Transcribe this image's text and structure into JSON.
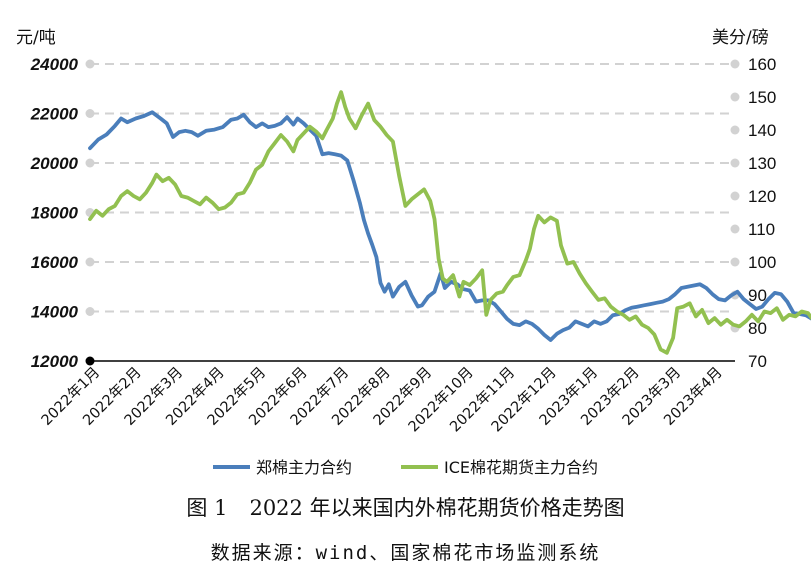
{
  "chart_data": {
    "type": "line",
    "y_left_label": "元/吨",
    "y_right_label": "美分/磅",
    "y_left_ticks": [
      "24000",
      "22000",
      "20000",
      "18000",
      "16000",
      "14000",
      "12000"
    ],
    "y_right_ticks": [
      "160",
      "150",
      "140",
      "130",
      "120",
      "110",
      "100",
      "90",
      "80",
      "70"
    ],
    "y_left_range": [
      12000,
      24000
    ],
    "y_right_range": [
      70,
      160
    ],
    "x_ticks": [
      "2022年1月",
      "2022年2月",
      "2022年3月",
      "2022年4月",
      "2022年5月",
      "2022年6月",
      "2022年7月",
      "2022年8月",
      "2022年9月",
      "2022年10月",
      "2022年11月",
      "2022年12月",
      "2023年1月",
      "2023年2月",
      "2023年3月",
      "2023年4月"
    ],
    "grid": "horizontal dashed",
    "legend_position": "bottom",
    "series": [
      {
        "name": "郑棉主力合约",
        "axis": "left",
        "color": "#4a7ebb",
        "points": [
          [
            0.0,
            20600
          ],
          [
            0.2,
            20950
          ],
          [
            0.4,
            21150
          ],
          [
            0.6,
            21500
          ],
          [
            0.75,
            21800
          ],
          [
            0.9,
            21650
          ],
          [
            1.1,
            21800
          ],
          [
            1.3,
            21900
          ],
          [
            1.5,
            22050
          ],
          [
            1.7,
            21800
          ],
          [
            1.85,
            21600
          ],
          [
            2.0,
            21050
          ],
          [
            2.15,
            21250
          ],
          [
            2.3,
            21300
          ],
          [
            2.45,
            21250
          ],
          [
            2.6,
            21100
          ],
          [
            2.8,
            21300
          ],
          [
            3.0,
            21350
          ],
          [
            3.2,
            21450
          ],
          [
            3.4,
            21750
          ],
          [
            3.55,
            21800
          ],
          [
            3.7,
            21950
          ],
          [
            3.85,
            21650
          ],
          [
            4.0,
            21450
          ],
          [
            4.15,
            21600
          ],
          [
            4.3,
            21450
          ],
          [
            4.45,
            21500
          ],
          [
            4.6,
            21600
          ],
          [
            4.75,
            21850
          ],
          [
            4.9,
            21550
          ],
          [
            5.0,
            21800
          ],
          [
            5.15,
            21600
          ],
          [
            5.3,
            21350
          ],
          [
            5.45,
            21100
          ],
          [
            5.6,
            20350
          ],
          [
            5.75,
            20400
          ],
          [
            5.9,
            20350
          ],
          [
            6.05,
            20300
          ],
          [
            6.2,
            20100
          ],
          [
            6.35,
            19300
          ],
          [
            6.5,
            18400
          ],
          [
            6.6,
            17700
          ],
          [
            6.7,
            17150
          ],
          [
            6.8,
            16700
          ],
          [
            6.9,
            16200
          ],
          [
            7.0,
            15150
          ],
          [
            7.1,
            14800
          ],
          [
            7.2,
            15100
          ],
          [
            7.3,
            14600
          ],
          [
            7.45,
            15000
          ],
          [
            7.6,
            15200
          ],
          [
            7.75,
            14650
          ],
          [
            7.9,
            14200
          ],
          [
            8.0,
            14250
          ],
          [
            8.15,
            14600
          ],
          [
            8.3,
            14800
          ],
          [
            8.45,
            15550
          ],
          [
            8.55,
            14950
          ],
          [
            8.7,
            15200
          ],
          [
            8.85,
            15100
          ],
          [
            9.0,
            14900
          ],
          [
            9.15,
            14850
          ],
          [
            9.3,
            14400
          ],
          [
            9.45,
            14450
          ],
          [
            9.6,
            14450
          ],
          [
            9.75,
            14300
          ],
          [
            9.9,
            14000
          ],
          [
            10.05,
            13700
          ],
          [
            10.2,
            13500
          ],
          [
            10.35,
            13450
          ],
          [
            10.5,
            13600
          ],
          [
            10.65,
            13500
          ],
          [
            10.8,
            13300
          ],
          [
            10.95,
            13050
          ],
          [
            11.1,
            12850
          ],
          [
            11.25,
            13100
          ],
          [
            11.4,
            13250
          ],
          [
            11.55,
            13350
          ],
          [
            11.7,
            13600
          ],
          [
            11.85,
            13500
          ],
          [
            12.0,
            13400
          ],
          [
            12.15,
            13600
          ],
          [
            12.3,
            13500
          ],
          [
            12.45,
            13600
          ],
          [
            12.6,
            13850
          ],
          [
            12.75,
            13900
          ],
          [
            12.9,
            14050
          ],
          [
            13.05,
            14150
          ],
          [
            13.2,
            14200
          ],
          [
            13.35,
            14250
          ],
          [
            13.5,
            14300
          ],
          [
            13.65,
            14350
          ],
          [
            13.8,
            14400
          ],
          [
            13.95,
            14500
          ],
          [
            14.1,
            14700
          ],
          [
            14.25,
            14950
          ],
          [
            14.4,
            15000
          ],
          [
            14.55,
            15050
          ],
          [
            14.7,
            15100
          ],
          [
            14.85,
            14950
          ],
          [
            15.0,
            14700
          ],
          [
            15.15,
            14500
          ],
          [
            15.3,
            14450
          ],
          [
            15.45,
            14650
          ],
          [
            15.6,
            14800
          ],
          [
            15.75,
            14500
          ],
          [
            15.9,
            14300
          ],
          [
            16.05,
            14100
          ],
          [
            16.2,
            14200
          ],
          [
            16.35,
            14500
          ],
          [
            16.5,
            14750
          ],
          [
            16.65,
            14700
          ],
          [
            16.8,
            14400
          ],
          [
            16.95,
            13950
          ],
          [
            17.1,
            13900
          ],
          [
            17.25,
            13850
          ],
          [
            17.4,
            13700
          ],
          [
            17.55,
            13600
          ],
          [
            17.7,
            14400
          ],
          [
            17.85,
            14450
          ],
          [
            18.0,
            14600
          ],
          [
            18.1,
            14800
          ],
          [
            18.25,
            14750
          ]
        ]
      },
      {
        "name": "ICE棉花期货主力合约",
        "axis": "right",
        "color": "#92c050",
        "points": [
          [
            0.0,
            113.0
          ],
          [
            0.15,
            115.5
          ],
          [
            0.3,
            114.0
          ],
          [
            0.45,
            116.0
          ],
          [
            0.6,
            117.0
          ],
          [
            0.75,
            120.0
          ],
          [
            0.9,
            121.5
          ],
          [
            1.05,
            120.0
          ],
          [
            1.2,
            119.0
          ],
          [
            1.35,
            121.0
          ],
          [
            1.5,
            124.0
          ],
          [
            1.6,
            126.5
          ],
          [
            1.75,
            124.5
          ],
          [
            1.9,
            125.5
          ],
          [
            2.05,
            123.5
          ],
          [
            2.2,
            120.0
          ],
          [
            2.35,
            119.5
          ],
          [
            2.5,
            118.5
          ],
          [
            2.65,
            117.5
          ],
          [
            2.8,
            119.5
          ],
          [
            2.95,
            118.0
          ],
          [
            3.1,
            116.0
          ],
          [
            3.25,
            116.5
          ],
          [
            3.4,
            118.0
          ],
          [
            3.55,
            120.5
          ],
          [
            3.7,
            121.0
          ],
          [
            3.85,
            124.0
          ],
          [
            4.0,
            128.0
          ],
          [
            4.15,
            129.5
          ],
          [
            4.3,
            133.5
          ],
          [
            4.45,
            136.0
          ],
          [
            4.6,
            138.5
          ],
          [
            4.75,
            136.5
          ],
          [
            4.9,
            133.5
          ],
          [
            5.0,
            137.0
          ],
          [
            5.15,
            139.0
          ],
          [
            5.3,
            141.0
          ],
          [
            5.45,
            139.5
          ],
          [
            5.6,
            137.5
          ],
          [
            5.7,
            140.0
          ],
          [
            5.85,
            143.5
          ],
          [
            5.95,
            148.0
          ],
          [
            6.05,
            151.5
          ],
          [
            6.15,
            147.0
          ],
          [
            6.25,
            143.5
          ],
          [
            6.4,
            140.5
          ],
          [
            6.55,
            144.5
          ],
          [
            6.7,
            148.0
          ],
          [
            6.85,
            143.0
          ],
          [
            7.0,
            141.0
          ],
          [
            7.15,
            138.5
          ],
          [
            7.3,
            136.5
          ],
          [
            7.45,
            126.0
          ],
          [
            7.6,
            117.0
          ],
          [
            7.75,
            119.0
          ],
          [
            7.9,
            120.5
          ],
          [
            8.05,
            122.0
          ],
          [
            8.2,
            118.5
          ],
          [
            8.3,
            113.0
          ],
          [
            8.4,
            101.0
          ],
          [
            8.5,
            95.0
          ],
          [
            8.6,
            94.0
          ],
          [
            8.75,
            96.0
          ],
          [
            8.9,
            89.5
          ],
          [
            9.0,
            94.0
          ],
          [
            9.15,
            93.0
          ],
          [
            9.3,
            95.0
          ],
          [
            9.45,
            97.5
          ],
          [
            9.55,
            84.0
          ],
          [
            9.65,
            88.5
          ],
          [
            9.8,
            90.5
          ],
          [
            9.95,
            91.0
          ],
          [
            10.05,
            93.0
          ],
          [
            10.2,
            95.5
          ],
          [
            10.35,
            96.0
          ],
          [
            10.5,
            100.5
          ],
          [
            10.6,
            104.0
          ],
          [
            10.7,
            110.0
          ],
          [
            10.8,
            114.0
          ],
          [
            10.95,
            112.0
          ],
          [
            11.1,
            113.5
          ],
          [
            11.25,
            112.5
          ],
          [
            11.35,
            105.0
          ],
          [
            11.5,
            99.5
          ],
          [
            11.65,
            100.0
          ],
          [
            11.8,
            96.5
          ],
          [
            11.95,
            93.5
          ],
          [
            12.1,
            91.0
          ],
          [
            12.25,
            88.5
          ],
          [
            12.4,
            89.0
          ],
          [
            12.55,
            86.5
          ],
          [
            12.7,
            85.0
          ],
          [
            12.85,
            84.0
          ],
          [
            13.0,
            82.5
          ],
          [
            13.15,
            83.5
          ],
          [
            13.3,
            81.0
          ],
          [
            13.45,
            80.0
          ],
          [
            13.6,
            78.0
          ],
          [
            13.75,
            73.5
          ],
          [
            13.9,
            72.5
          ],
          [
            14.05,
            77.0
          ],
          [
            14.15,
            86.0
          ],
          [
            14.3,
            86.5
          ],
          [
            14.45,
            87.5
          ],
          [
            14.6,
            83.5
          ],
          [
            14.75,
            85.5
          ],
          [
            14.9,
            81.5
          ],
          [
            15.05,
            83.0
          ],
          [
            15.2,
            81.0
          ],
          [
            15.35,
            82.5
          ],
          [
            15.5,
            81.0
          ],
          [
            15.65,
            80.5
          ],
          [
            15.8,
            82.0
          ],
          [
            15.95,
            84.0
          ],
          [
            16.1,
            82.0
          ],
          [
            16.25,
            85.0
          ],
          [
            16.4,
            84.5
          ],
          [
            16.55,
            86.0
          ],
          [
            16.7,
            82.5
          ],
          [
            16.85,
            84.0
          ],
          [
            17.0,
            83.5
          ],
          [
            17.15,
            85.0
          ],
          [
            17.3,
            84.5
          ],
          [
            17.45,
            82.0
          ],
          [
            17.6,
            84.5
          ],
          [
            17.75,
            85.5
          ],
          [
            17.9,
            84.0
          ],
          [
            18.05,
            82.5
          ],
          [
            18.2,
            83.0
          ],
          [
            18.35,
            84.0
          ],
          [
            18.5,
            82.5
          ],
          [
            18.65,
            82.0
          ],
          [
            18.8,
            81.5
          ],
          [
            18.95,
            83.0
          ],
          [
            19.1,
            84.0
          ],
          [
            19.25,
            84.5
          ],
          [
            19.4,
            85.5
          ],
          [
            19.55,
            83.0
          ],
          [
            19.7,
            81.5
          ],
          [
            19.85,
            81.0
          ],
          [
            20.0,
            83.0
          ],
          [
            20.15,
            80.5
          ],
          [
            20.3,
            79.0
          ],
          [
            20.45,
            81.0
          ],
          [
            20.6,
            78.5
          ],
          [
            20.75,
            79.5
          ],
          [
            20.9,
            78.0
          ],
          [
            21.05,
            80.5
          ],
          [
            21.2,
            82.5
          ],
          [
            21.35,
            83.0
          ],
          [
            21.5,
            82.0
          ],
          [
            21.65,
            83.5
          ],
          [
            21.8,
            83.0
          ]
        ]
      }
    ]
  },
  "figure": {
    "number": "图 1",
    "title": "2022 年以来国内外棉花期货价格走势图",
    "source": "数据来源：wind、国家棉花市场监测系统"
  }
}
